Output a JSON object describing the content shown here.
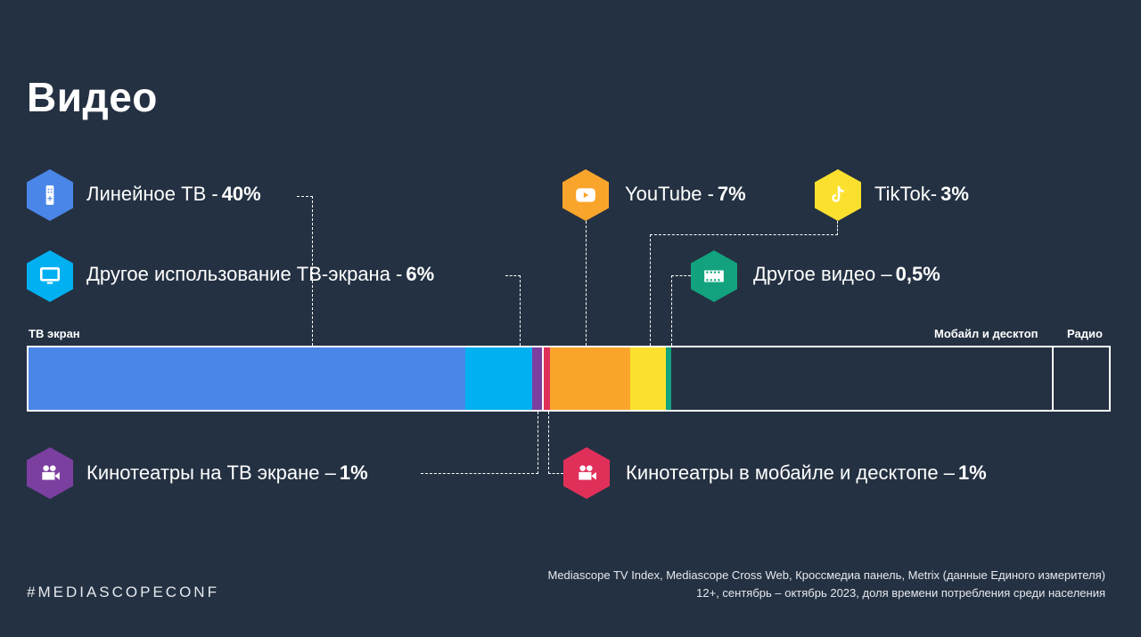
{
  "title": "Видео",
  "hashtag": "#MEDIASCOPECONF",
  "footnote": [
    "Mediascope TV Index, Mediascope Cross  Web, Кроссмедиа панель, Metrix (данные Единого измерителя)",
    "12+, сентябрь – октябрь 2023, доля времени потребления среди населения"
  ],
  "chart_data": {
    "type": "bar",
    "orientation": "horizontal-stacked",
    "group_labels": [
      "ТВ экран",
      "Мобайл и десктоп",
      "Радио"
    ],
    "segments": [
      {
        "name": "Линейное ТВ",
        "label": "Линейное ТВ - ",
        "value_text": "40%",
        "value": 40.4,
        "group": "ТВ экран",
        "color": "#4a86e8",
        "icon": "remote-control-icon"
      },
      {
        "name": "Другое использование ТВ-экрана",
        "label": "Другое использование ТВ-экрана - ",
        "value_text": "6%",
        "value": 6.2,
        "group": "ТВ экран",
        "color": "#00b0f0",
        "icon": "monitor-icon"
      },
      {
        "name": "Кинотеатры на ТВ экране",
        "label": "Кинотеатры на ТВ экране – ",
        "value_text": "1%",
        "value": 1.0,
        "group": "ТВ экран",
        "color": "#7b3fa0",
        "icon": "movie-camera-icon"
      },
      {
        "name": "Кинотеатры в мобайле и десктопе",
        "label": "Кинотеатры в мобайле и десктопе – ",
        "value_text": "1%",
        "value": 0.7,
        "group": "Мобайл и десктоп",
        "color": "#e0305a",
        "icon": "movie-camera-icon"
      },
      {
        "name": "YouTube",
        "label": "YouTube - ",
        "value_text": "7%",
        "value": 7.4,
        "group": "Мобайл и десктоп",
        "color": "#f9a52b",
        "icon": "youtube-icon"
      },
      {
        "name": "TikTok",
        "label": "TikTok- ",
        "value_text": "3%",
        "value": 3.3,
        "group": "Мобайл и десктоп",
        "color": "#fbe12e",
        "icon": "tiktok-icon"
      },
      {
        "name": "Другое видео",
        "label": "Другое видео – ",
        "value_text": "0,5%",
        "value": 0.5,
        "group": "Мобайл и десктоп",
        "color": "#12a37e",
        "icon": "film-strip-icon"
      },
      {
        "name": "Прочее мобайл и десктоп",
        "value": 35.3,
        "group": "Мобайл и десктоп",
        "color": "#243142"
      },
      {
        "name": "Радио",
        "value": 5.2,
        "group": "Радио",
        "color": "#243142"
      }
    ]
  }
}
